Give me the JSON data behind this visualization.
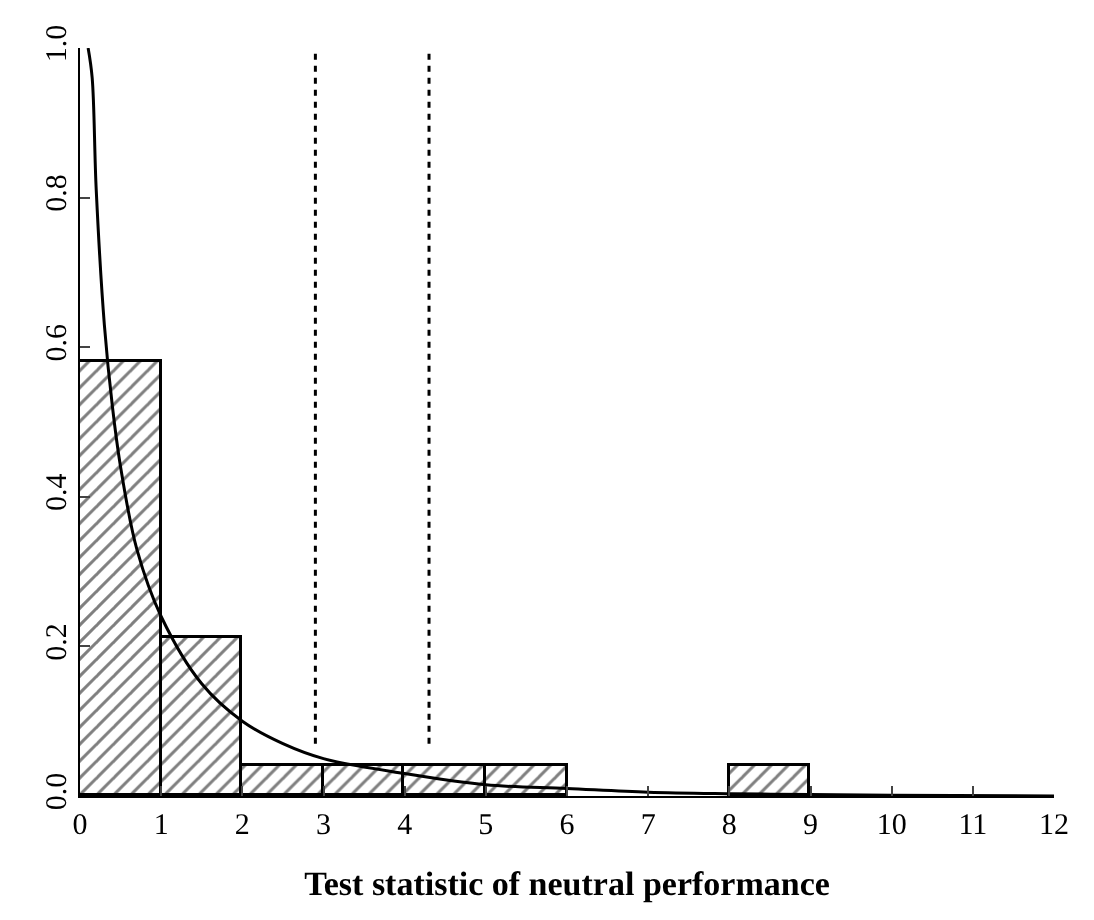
{
  "chart_data": {
    "type": "histogram",
    "xlabel": "Test statistic of neutral performance",
    "bins": [
      0,
      1,
      2,
      3,
      4,
      5,
      6,
      7,
      8,
      9
    ],
    "series": [
      {
        "color": "#000000",
        "values": [
          0.58,
          0.21,
          0.04,
          0.04,
          0.04,
          0.04,
          0,
          0,
          0.04
        ]
      },
      {
        "type": "line",
        "color": "#000000",
        "x": [
          0.1,
          0.15,
          0.2,
          0.3,
          0.4,
          0.5,
          0.7,
          1,
          1.5,
          2,
          2.5,
          3,
          4,
          5,
          6,
          7,
          8,
          9,
          10,
          12
        ],
        "values": [
          1.0,
          0.96,
          0.81,
          0.63,
          0.52,
          0.44,
          0.33,
          0.24,
          0.15,
          0.1,
          0.07,
          0.05,
          0.03,
          0.015,
          0.01,
          0.005,
          0.003,
          0.002,
          0.001,
          0
        ]
      }
    ],
    "ref_lines": [
      {
        "axis": "x",
        "value": 2.9,
        "line_style": "dotted"
      },
      {
        "axis": "x",
        "value": 4.3,
        "line_style": "dotted"
      }
    ],
    "xlim": [
      0,
      12
    ],
    "xticks": [
      0,
      1,
      2,
      3,
      4,
      5,
      6,
      7,
      8,
      9,
      10,
      11,
      12
    ],
    "ylim": [
      0,
      1
    ],
    "yticks": [
      {
        "value": 0,
        "label": "0.0"
      },
      {
        "value": 0.2,
        "label": "0.2"
      },
      {
        "value": 0.4,
        "label": "0.4"
      },
      {
        "value": 0.6,
        "label": "0.6"
      },
      {
        "value": 0.8,
        "label": "0.8"
      },
      {
        "value": 1,
        "label": "1.0"
      }
    ]
  }
}
